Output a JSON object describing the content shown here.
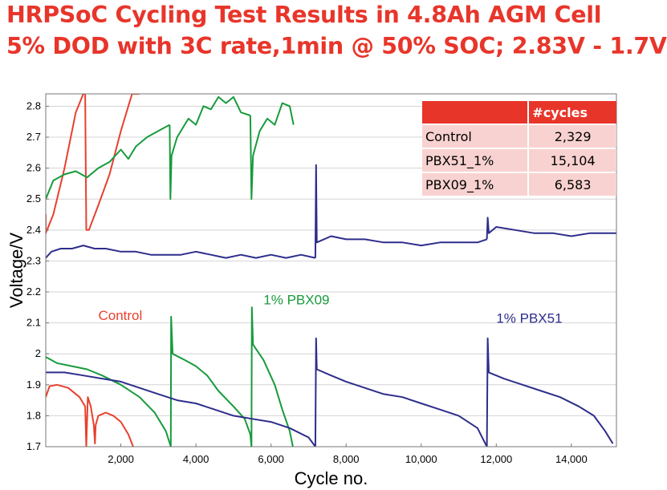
{
  "title_line1": "HRPSoC Cycling Test Results in  4.8Ah AGM Cell",
  "title_line2": "5% DOD with 3C rate,1min @ 50% SOC; 2.83V - 1.7V",
  "table": {
    "header": [
      "",
      "#cycles"
    ],
    "rows": [
      {
        "label": "Control",
        "value": "2,329"
      },
      {
        "label": "PBX51_1%",
        "value": "15,104"
      },
      {
        "label": "PBX09_1%",
        "value": "6,583"
      }
    ]
  },
  "colors": {
    "control": "#e8402e",
    "pbx09": "#179b3c",
    "pbx51": "#2e2d8c",
    "title": "#e8352a"
  },
  "chart_data": {
    "type": "line",
    "xlabel": "Cycle no.",
    "ylabel": "Voltage/V",
    "xlim": [
      0,
      15200
    ],
    "ylim": [
      1.7,
      2.84
    ],
    "xticks": [
      2000,
      4000,
      6000,
      8000,
      10000,
      12000,
      14000
    ],
    "xtick_labels": [
      "2,000",
      "4,000",
      "6,000",
      "8,000",
      "10,000",
      "12,000",
      "14,000"
    ],
    "yticks": [
      1.7,
      1.8,
      1.9,
      2.0,
      2.1,
      2.2,
      2.3,
      2.4,
      2.5,
      2.6,
      2.7,
      2.8
    ],
    "ytick_labels": [
      "1.7",
      "1.8",
      "1.9",
      "2",
      "2.1",
      "2.2",
      "2.3",
      "2.4",
      "2.5",
      "2.6",
      "2.7",
      "2.8"
    ],
    "grid": "horizontal",
    "annotations": [
      {
        "text": "Control",
        "series": "control",
        "x": 1400,
        "y": 2.11
      },
      {
        "text": "1% PBX09",
        "series": "pbx09",
        "x": 5800,
        "y": 2.16
      },
      {
        "text": "1% PBX51",
        "series": "pbx51",
        "x": 12000,
        "y": 2.1
      }
    ],
    "series": [
      {
        "key": "control",
        "segments": [
          [
            [
              0,
              2.45
            ],
            [
              0,
              2.39
            ],
            [
              200,
              2.45
            ],
            [
              500,
              2.6
            ],
            [
              800,
              2.78
            ],
            [
              1000,
              2.84
            ],
            [
              1050,
              2.84
            ]
          ],
          [
            [
              1050,
              2.84
            ],
            [
              1080,
              2.4
            ],
            [
              1150,
              2.4
            ],
            [
              1400,
              2.48
            ],
            [
              1700,
              2.58
            ],
            [
              2000,
              2.72
            ],
            [
              2200,
              2.8
            ],
            [
              2300,
              2.84
            ],
            [
              2500,
              2.84
            ]
          ],
          [
            [
              0,
              1.86
            ],
            [
              100,
              1.895
            ],
            [
              300,
              1.9
            ],
            [
              600,
              1.89
            ],
            [
              900,
              1.86
            ],
            [
              1050,
              1.83
            ],
            [
              1080,
              1.7
            ]
          ],
          [
            [
              1080,
              1.7
            ],
            [
              1120,
              1.86
            ],
            [
              1200,
              1.83
            ],
            [
              1280,
              1.77
            ],
            [
              1310,
              1.71
            ],
            [
              1330,
              1.77
            ],
            [
              1400,
              1.8
            ],
            [
              1600,
              1.81
            ],
            [
              1800,
              1.8
            ],
            [
              2000,
              1.78
            ],
            [
              2200,
              1.74
            ],
            [
              2329,
              1.7
            ]
          ]
        ]
      },
      {
        "key": "pbx09",
        "segments": [
          [
            [
              0,
              2.5
            ],
            [
              200,
              2.56
            ],
            [
              500,
              2.58
            ],
            [
              800,
              2.59
            ],
            [
              1100,
              2.57
            ],
            [
              1400,
              2.6
            ],
            [
              1700,
              2.62
            ],
            [
              2000,
              2.66
            ],
            [
              2200,
              2.63
            ],
            [
              2400,
              2.67
            ],
            [
              2700,
              2.7
            ],
            [
              3000,
              2.72
            ],
            [
              3300,
              2.74
            ]
          ],
          [
            [
              3300,
              2.74
            ],
            [
              3320,
              2.5
            ],
            [
              3350,
              2.64
            ],
            [
              3500,
              2.7
            ],
            [
              3800,
              2.76
            ],
            [
              4000,
              2.74
            ],
            [
              4200,
              2.8
            ],
            [
              4400,
              2.79
            ],
            [
              4600,
              2.83
            ],
            [
              4800,
              2.81
            ],
            [
              5000,
              2.83
            ],
            [
              5200,
              2.78
            ],
            [
              5450,
              2.77
            ]
          ],
          [
            [
              5450,
              2.77
            ],
            [
              5480,
              2.5
            ],
            [
              5520,
              2.64
            ],
            [
              5700,
              2.72
            ],
            [
              5900,
              2.76
            ],
            [
              6100,
              2.74
            ],
            [
              6300,
              2.81
            ],
            [
              6500,
              2.8
            ],
            [
              6600,
              2.74
            ]
          ],
          [
            [
              0,
              1.99
            ],
            [
              300,
              1.97
            ],
            [
              700,
              1.96
            ],
            [
              1100,
              1.95
            ],
            [
              1500,
              1.93
            ],
            [
              2000,
              1.9
            ],
            [
              2500,
              1.86
            ],
            [
              2900,
              1.81
            ],
            [
              3200,
              1.75
            ],
            [
              3330,
              1.7
            ]
          ],
          [
            [
              3330,
              1.7
            ],
            [
              3340,
              2.12
            ],
            [
              3380,
              2.0
            ],
            [
              3700,
              1.98
            ],
            [
              4000,
              1.96
            ],
            [
              4300,
              1.93
            ],
            [
              4600,
              1.88
            ],
            [
              5000,
              1.83
            ],
            [
              5300,
              1.79
            ],
            [
              5450,
              1.74
            ],
            [
              5480,
              1.7
            ]
          ],
          [
            [
              5480,
              1.7
            ],
            [
              5490,
              2.15
            ],
            [
              5520,
              2.03
            ],
            [
              5800,
              1.98
            ],
            [
              6100,
              1.9
            ],
            [
              6300,
              1.82
            ],
            [
              6500,
              1.75
            ],
            [
              6583,
              1.7
            ]
          ]
        ]
      },
      {
        "key": "pbx51",
        "segments": [
          [
            [
              0,
              2.31
            ],
            [
              150,
              2.33
            ],
            [
              400,
              2.34
            ],
            [
              700,
              2.34
            ],
            [
              1000,
              2.35
            ],
            [
              1300,
              2.34
            ],
            [
              1600,
              2.34
            ],
            [
              2000,
              2.33
            ],
            [
              2400,
              2.33
            ],
            [
              2800,
              2.32
            ],
            [
              3200,
              2.32
            ],
            [
              3600,
              2.32
            ],
            [
              4000,
              2.33
            ],
            [
              4400,
              2.32
            ],
            [
              4800,
              2.31
            ],
            [
              5200,
              2.32
            ],
            [
              5600,
              2.31
            ],
            [
              6000,
              2.32
            ],
            [
              6400,
              2.31
            ],
            [
              6800,
              2.32
            ],
            [
              7180,
              2.31
            ]
          ],
          [
            [
              7180,
              2.31
            ],
            [
              7200,
              2.61
            ],
            [
              7220,
              2.36
            ],
            [
              7600,
              2.38
            ],
            [
              8000,
              2.37
            ],
            [
              8500,
              2.37
            ],
            [
              9000,
              2.36
            ],
            [
              9500,
              2.36
            ],
            [
              10000,
              2.35
            ],
            [
              10500,
              2.36
            ],
            [
              11000,
              2.36
            ],
            [
              11500,
              2.36
            ],
            [
              11750,
              2.37
            ]
          ],
          [
            [
              11750,
              2.37
            ],
            [
              11770,
              2.44
            ],
            [
              11800,
              2.39
            ],
            [
              12000,
              2.41
            ],
            [
              12500,
              2.4
            ],
            [
              13000,
              2.39
            ],
            [
              13500,
              2.39
            ],
            [
              14000,
              2.38
            ],
            [
              14500,
              2.39
            ],
            [
              15000,
              2.39
            ],
            [
              15200,
              2.39
            ]
          ],
          [
            [
              0,
              1.94
            ],
            [
              500,
              1.94
            ],
            [
              1000,
              1.93
            ],
            [
              1500,
              1.92
            ],
            [
              2000,
              1.91
            ],
            [
              2500,
              1.89
            ],
            [
              3000,
              1.87
            ],
            [
              3500,
              1.85
            ],
            [
              4000,
              1.84
            ],
            [
              4500,
              1.82
            ],
            [
              5000,
              1.8
            ],
            [
              5500,
              1.79
            ],
            [
              6000,
              1.78
            ],
            [
              6500,
              1.76
            ],
            [
              7000,
              1.73
            ],
            [
              7180,
              1.7
            ]
          ],
          [
            [
              7180,
              1.7
            ],
            [
              7200,
              2.05
            ],
            [
              7220,
              1.95
            ],
            [
              7600,
              1.93
            ],
            [
              8000,
              1.91
            ],
            [
              8500,
              1.89
            ],
            [
              9000,
              1.87
            ],
            [
              9500,
              1.86
            ],
            [
              10000,
              1.84
            ],
            [
              10500,
              1.82
            ],
            [
              11000,
              1.8
            ],
            [
              11500,
              1.76
            ],
            [
              11750,
              1.7
            ]
          ],
          [
            [
              11750,
              1.7
            ],
            [
              11770,
              2.05
            ],
            [
              11800,
              1.94
            ],
            [
              12200,
              1.92
            ],
            [
              12700,
              1.9
            ],
            [
              13200,
              1.88
            ],
            [
              13700,
              1.86
            ],
            [
              14200,
              1.83
            ],
            [
              14600,
              1.8
            ],
            [
              14900,
              1.75
            ],
            [
              15104,
              1.71
            ]
          ]
        ]
      }
    ]
  }
}
